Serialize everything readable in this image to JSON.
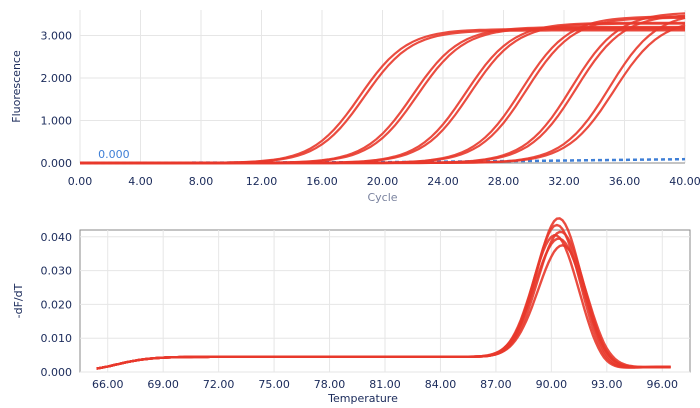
{
  "chart_data": [
    {
      "type": "line",
      "title": "",
      "xlabel": "Cycle",
      "ylabel": "Fluorescence",
      "xlim": [
        0,
        40
      ],
      "ylim": [
        0,
        3.6
      ],
      "x_ticks": [
        "0.00",
        "4.00",
        "8.00",
        "12.00",
        "16.00",
        "20.00",
        "24.00",
        "28.00",
        "32.00",
        "36.00",
        "40.00"
      ],
      "y_ticks": [
        "0.000",
        "1.000",
        "2.000",
        "3.000"
      ],
      "threshold_label": "0.000",
      "grid": true,
      "legend": "none",
      "series_color": "#e8392b",
      "baseline_color": "#3f7fd6",
      "curve_model": "sigmoid",
      "series": [
        {
          "midpoint": 18.5,
          "plateau": 3.15
        },
        {
          "midpoint": 18.8,
          "plateau": 3.12
        },
        {
          "midpoint": 22.0,
          "plateau": 3.2
        },
        {
          "midpoint": 22.3,
          "plateau": 3.18
        },
        {
          "midpoint": 25.5,
          "plateau": 3.3
        },
        {
          "midpoint": 25.8,
          "plateau": 3.28
        },
        {
          "midpoint": 29.2,
          "plateau": 3.45
        },
        {
          "midpoint": 29.5,
          "plateau": 3.42
        },
        {
          "midpoint": 32.5,
          "plateau": 3.55
        },
        {
          "midpoint": 32.8,
          "plateau": 3.5
        },
        {
          "midpoint": 35.0,
          "plateau": 3.55
        },
        {
          "midpoint": 35.3,
          "plateau": 3.4
        }
      ],
      "baseline_series": [
        {
          "x": 0,
          "y": 0.0
        },
        {
          "x": 20,
          "y": 0.02
        },
        {
          "x": 30,
          "y": 0.05
        },
        {
          "x": 40,
          "y": 0.09
        }
      ]
    },
    {
      "type": "line",
      "title": "",
      "xlabel": "Temperature",
      "ylabel": "-dF/dT",
      "xlim": [
        64.5,
        97.5
      ],
      "ylim": [
        0,
        0.042
      ],
      "x_ticks": [
        "66.00",
        "69.00",
        "72.00",
        "75.00",
        "78.00",
        "81.00",
        "84.00",
        "87.00",
        "90.00",
        "93.00",
        "96.00"
      ],
      "y_ticks": [
        "0.000",
        "0.010",
        "0.020",
        "0.030",
        "0.040"
      ],
      "grid": true,
      "legend": "none",
      "series_color": "#e8392b",
      "curve_model": "gaussian-peak",
      "series": [
        {
          "peak_temp": 90.4,
          "peak_height": 0.041,
          "width": 1.2
        },
        {
          "peak_temp": 90.3,
          "peak_height": 0.039,
          "width": 1.2
        },
        {
          "peak_temp": 90.5,
          "peak_height": 0.037,
          "width": 1.25
        },
        {
          "peak_temp": 90.4,
          "peak_height": 0.035,
          "width": 1.3
        },
        {
          "peak_temp": 90.6,
          "peak_height": 0.033,
          "width": 1.3
        },
        {
          "peak_temp": 90.2,
          "peak_height": 0.036,
          "width": 1.2
        }
      ]
    }
  ]
}
